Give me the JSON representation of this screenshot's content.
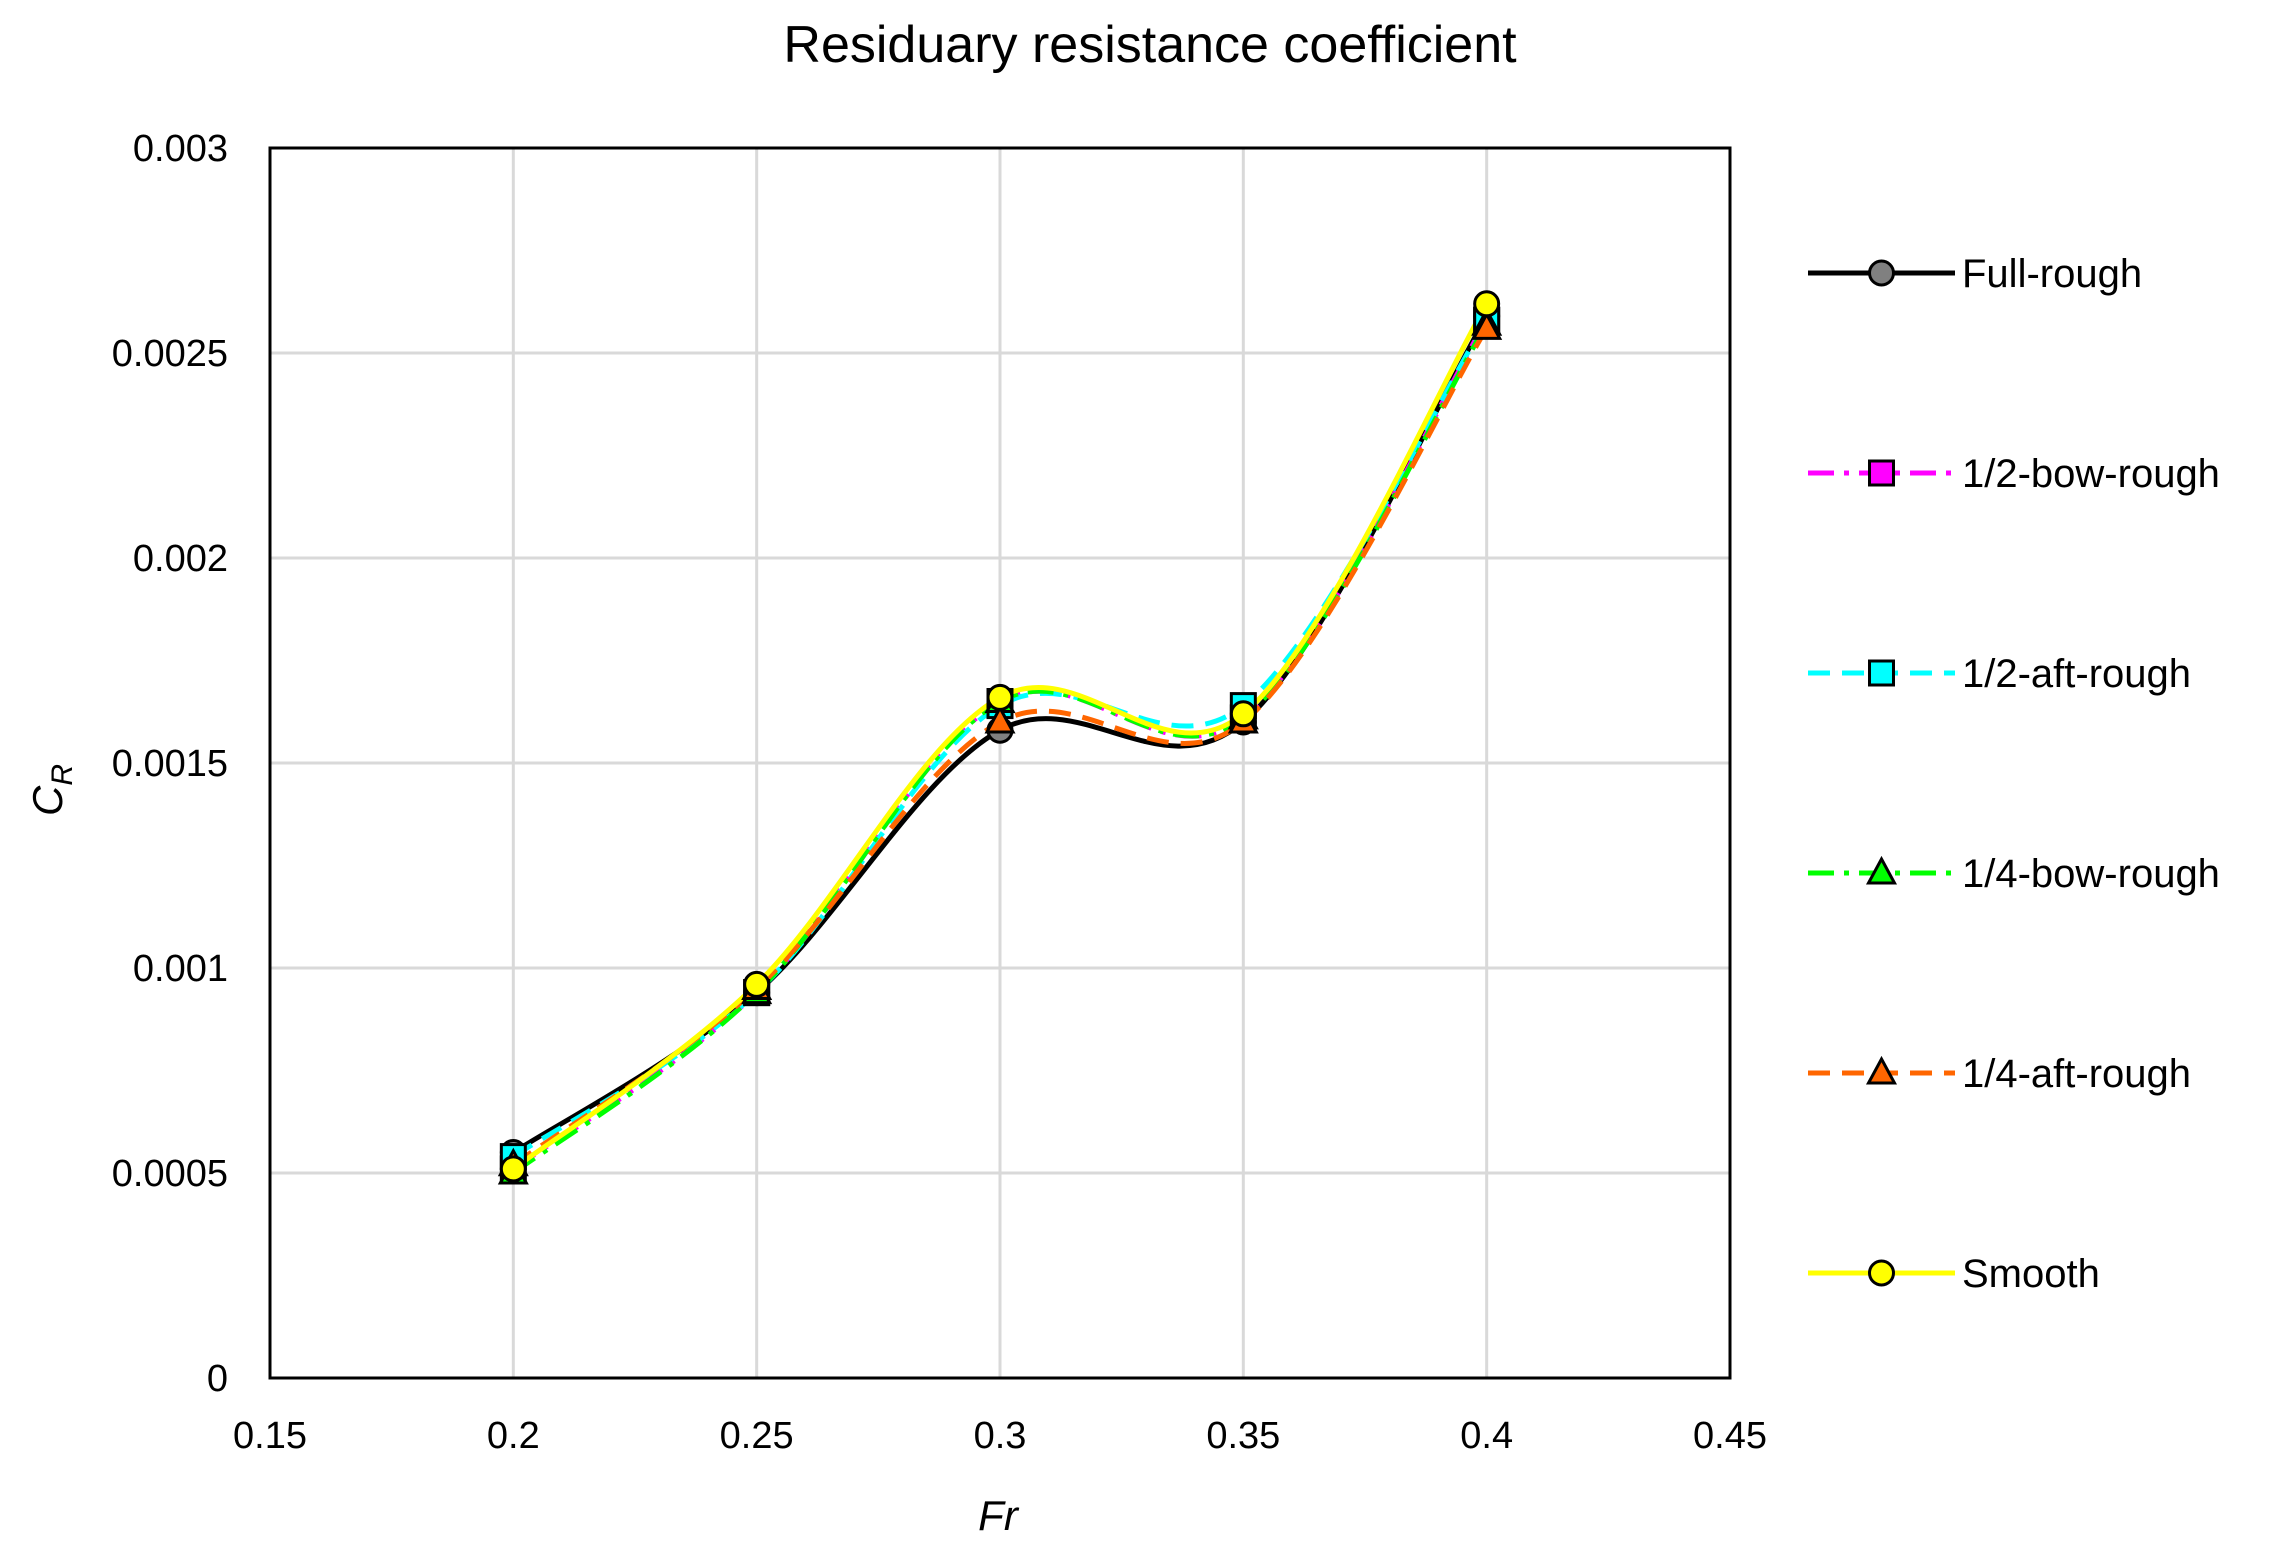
{
  "chart_data": {
    "type": "line",
    "title": "Residuary resistance coefficient",
    "xlabel": "Fr",
    "ylabel_main": "C",
    "ylabel_sub": "R",
    "xlim": [
      0.15,
      0.45
    ],
    "ylim": [
      0,
      0.003
    ],
    "x_ticks": [
      0.15,
      0.2,
      0.25,
      0.3,
      0.35,
      0.4,
      0.45
    ],
    "x_tick_labels": [
      "0.15",
      "0.2",
      "0.25",
      "0.3",
      "0.35",
      "0.4",
      "0.45"
    ],
    "y_ticks": [
      0,
      0.0005,
      0.001,
      0.0015,
      0.002,
      0.0025,
      0.003
    ],
    "y_tick_labels": [
      "0",
      "0.0005",
      "0.001",
      "0.0015",
      "0.002",
      "0.0025",
      "0.003"
    ],
    "grid": true,
    "legend_position": "right",
    "x": [
      0.2,
      0.25,
      0.3,
      0.35,
      0.4
    ],
    "series": [
      {
        "name": "Full-rough",
        "values": [
          0.00055,
          0.00094,
          0.00158,
          0.0016,
          0.00259
        ],
        "line_color": "#000000",
        "dash": "none",
        "marker": "circle",
        "marker_fill": "#808080"
      },
      {
        "name": "1/2-bow-rough",
        "values": [
          0.00051,
          0.00094,
          0.00165,
          0.00161,
          0.00258
        ],
        "line_color": "#ff00ff",
        "dash": "dashdot",
        "marker": "square",
        "marker_fill": "#ff00ff"
      },
      {
        "name": "1/2-aft-rough",
        "values": [
          0.00054,
          0.00094,
          0.00164,
          0.00164,
          0.00258
        ],
        "line_color": "#00ffff",
        "dash": "dash",
        "marker": "square",
        "marker_fill": "#00ffff"
      },
      {
        "name": "1/4-bow-rough",
        "values": [
          0.0005,
          0.00094,
          0.00165,
          0.00161,
          0.00257
        ],
        "line_color": "#00ff00",
        "dash": "dashdot",
        "marker": "triangle",
        "marker_fill": "#00ff00"
      },
      {
        "name": "1/4-aft-rough",
        "values": [
          0.00052,
          0.00095,
          0.0016,
          0.0016,
          0.00256
        ],
        "line_color": "#ff6600",
        "dash": "dash",
        "marker": "triangle",
        "marker_fill": "#ff6600"
      },
      {
        "name": "Smooth",
        "values": [
          0.00051,
          0.00096,
          0.00166,
          0.00162,
          0.00262
        ],
        "line_color": "#ffff00",
        "dash": "none",
        "marker": "circle",
        "marker_fill": "#ffff00"
      }
    ]
  }
}
